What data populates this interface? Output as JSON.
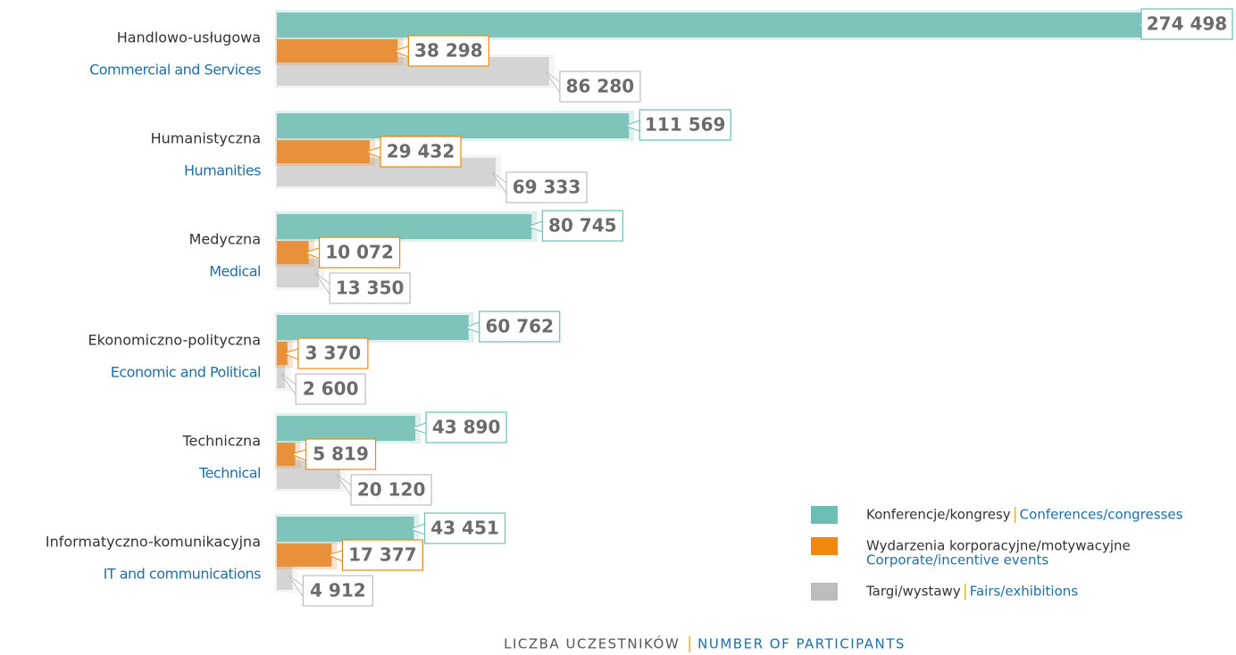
{
  "chart_data": {
    "type": "bar",
    "orientation": "horizontal",
    "categories": [
      "Handlowo-usługowa",
      "Humanistyczna",
      "Medyczna",
      "Ekonomiczno-polityczna",
      "Techniczna",
      "Informatyczno-komunikacyjna"
    ],
    "categories_en": [
      "Commercial and Services",
      "Humanities",
      "Medical",
      "Economic and Political",
      "Technical",
      "IT and communications"
    ],
    "series": [
      {
        "name": "Konferencje/kongresy",
        "name_en": "Conferences/congresses",
        "color": "#7fc4bb",
        "legend_color": "#6bbfb5",
        "values": [
          274498,
          111569,
          80745,
          60762,
          43890,
          43451
        ],
        "value_labels": [
          "274 498",
          "111 569",
          "80 745",
          "60 762",
          "43 890",
          "43 451"
        ]
      },
      {
        "name": "Wydarzenia korporacyjne/motywacyjne",
        "name_en": "Corporate/incentive events",
        "color": "#e8913a",
        "legend_color": "#f0870f",
        "values": [
          38298,
          29432,
          10072,
          3370,
          5819,
          17377
        ],
        "value_labels": [
          "38 298",
          "29 432",
          "10 072",
          "3 370",
          "5 819",
          "17 377"
        ]
      },
      {
        "name": "Targi/wystawy",
        "name_en": "Fairs/exhibitions",
        "color": "#d4d4d4",
        "legend_color": "#bdbdbd",
        "values": [
          86280,
          69333,
          13350,
          2600,
          20120,
          4912
        ],
        "value_labels": [
          "86 280",
          "69 333",
          "13 350",
          "2 600",
          "20 120",
          "4 912"
        ]
      }
    ],
    "x_label": "LICZBA UCZESTNIKÓW",
    "x_label_en": "NUMBER OF PARTICIPANTS",
    "legend": "lower right"
  }
}
